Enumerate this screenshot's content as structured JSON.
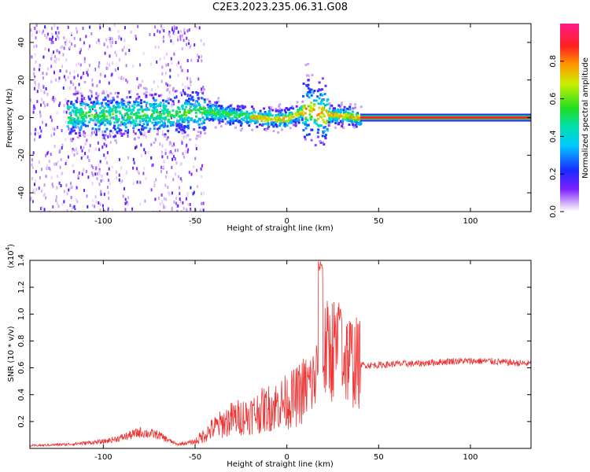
{
  "title": "C2E3.2023.235.06.31.G08",
  "chart_data": [
    {
      "type": "heatmap",
      "xlabel": "Height of straight line (km)",
      "ylabel": "Frequency (Hz)",
      "xlim": [
        -140,
        133
      ],
      "ylim": [
        -50,
        50
      ],
      "xticks": [
        -100,
        -50,
        0,
        50,
        100
      ],
      "yticks": [
        -40,
        -20,
        0,
        20,
        40
      ],
      "colorbar": {
        "label": "Normalized spectral amplitude",
        "range": [
          0.0,
          1.0
        ],
        "ticks": [
          "0.0",
          "0.2",
          "0.4",
          "0.6",
          "0.8"
        ],
        "colormap": "rainbow (white→purple→blue→cyan→green→yellow→red→magenta)"
      },
      "ridge": {
        "description": "Main spectral ridge: amplitude concentrated near 0 Hz for heights > 40 km, scattered broadband energy below -45 km",
        "points": [
          {
            "x": -100,
            "y": 2
          },
          {
            "x": -80,
            "y": 2
          },
          {
            "x": -60,
            "y": 3
          },
          {
            "x": -45,
            "y": 4
          },
          {
            "x": -30,
            "y": 2
          },
          {
            "x": -10,
            "y": 0
          },
          {
            "x": 0,
            "y": 0
          },
          {
            "x": 10,
            "y": 5
          },
          {
            "x": 20,
            "y": 2
          },
          {
            "x": 30,
            "y": 2
          },
          {
            "x": 40,
            "y": 0
          },
          {
            "x": 133,
            "y": 0
          }
        ]
      }
    },
    {
      "type": "line",
      "xlabel": "Height of straight line (km)",
      "ylabel": "SNR (10 * v/v)",
      "y_multiplier": "(x10",
      "y_multiplier_exp": "4",
      "y_multiplier_close": ")",
      "xlim": [
        -140,
        133
      ],
      "ylim": [
        0,
        1.4
      ],
      "xticks": [
        -100,
        -50,
        0,
        50,
        100
      ],
      "yticks": [
        "0.2",
        "0.4",
        "0.6",
        "0.8",
        "1.0",
        "1.2",
        "1.4"
      ],
      "color": "#ee3333",
      "series": [
        {
          "x": [
            -140,
            -120,
            -100,
            -90,
            -80,
            -70,
            -60,
            -50,
            -40,
            -30,
            -20,
            -10,
            0,
            5,
            10,
            15,
            18,
            20,
            25,
            30,
            35,
            40,
            50,
            60,
            70,
            80,
            90,
            100,
            110,
            120,
            133
          ],
          "values": [
            0.02,
            0.03,
            0.05,
            0.08,
            0.12,
            0.1,
            0.03,
            0.05,
            0.15,
            0.22,
            0.25,
            0.3,
            0.35,
            0.38,
            0.45,
            0.5,
            0.65,
            0.7,
            0.75,
            0.7,
            0.66,
            0.62,
            0.62,
            0.63,
            0.63,
            0.64,
            0.65,
            0.65,
            0.65,
            0.64,
            0.63
          ]
        }
      ]
    }
  ]
}
